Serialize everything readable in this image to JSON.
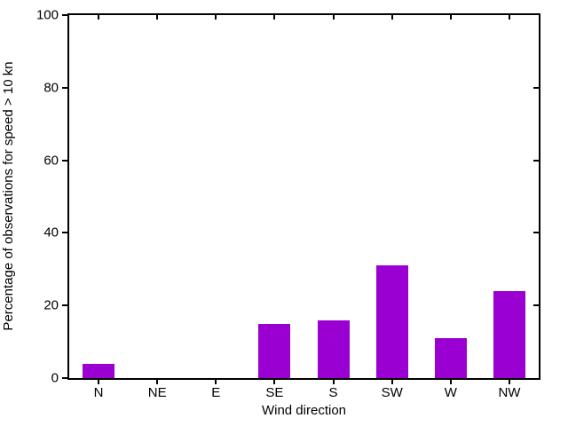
{
  "chart_data": {
    "type": "bar",
    "title": "",
    "xlabel": "Wind direction",
    "ylabel": "Percentage of observations for speed > 10 kn",
    "categories": [
      "N",
      "NE",
      "E",
      "SE",
      "S",
      "SW",
      "W",
      "NW"
    ],
    "values": [
      4,
      0,
      0,
      15,
      16,
      31,
      11,
      24
    ],
    "ylim": [
      0,
      100
    ],
    "yticks": [
      0,
      20,
      40,
      60,
      80,
      100
    ],
    "ytick_labels": [
      "0",
      "20",
      "40",
      "60",
      "80",
      "100"
    ],
    "grid": false,
    "legend": false,
    "bar_color": "#9A00D1",
    "axis_color": "#000000",
    "text_color": "#000000",
    "background_color": "#ffffff"
  }
}
